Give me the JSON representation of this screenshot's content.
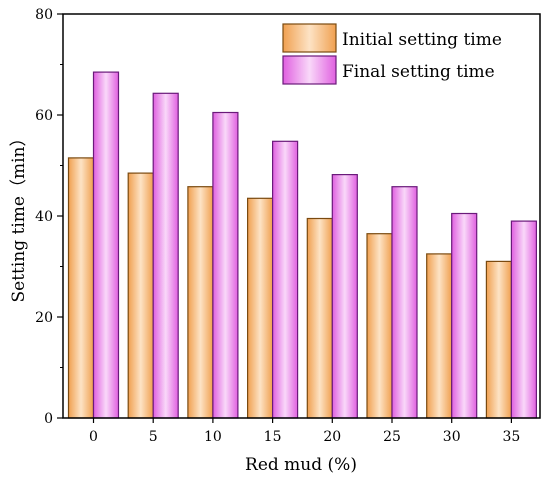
{
  "chart_data": {
    "type": "bar",
    "title": "",
    "xlabel": "Red mud (%)",
    "ylabel": "Setting time（min）",
    "categories": [
      "0",
      "5",
      "10",
      "15",
      "20",
      "25",
      "30",
      "35"
    ],
    "ylim": [
      0,
      80
    ],
    "yticks": [
      "0",
      "20",
      "40",
      "60",
      "80"
    ],
    "grid": false,
    "legend_position": "top-right",
    "series": [
      {
        "name": "Initial setting time",
        "values": [
          51.5,
          48.5,
          45.8,
          43.5,
          39.5,
          36.5,
          32.5,
          31.0
        ],
        "color": "#f5a95c",
        "edge": "#7a4a10"
      },
      {
        "name": "Final setting time",
        "values": [
          68.5,
          64.3,
          60.5,
          54.8,
          48.2,
          45.8,
          40.5,
          39.0
        ],
        "color": "#e96fe6",
        "edge": "#6a1a7a"
      }
    ]
  }
}
